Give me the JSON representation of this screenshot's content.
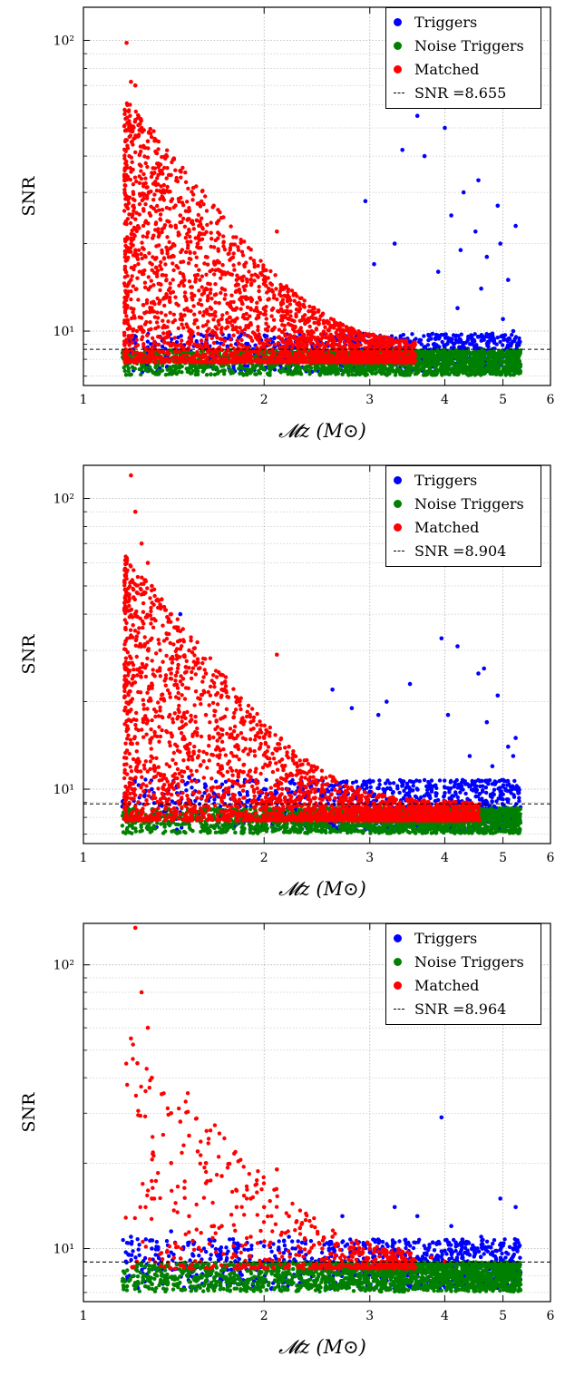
{
  "chart_data": [
    {
      "type": "scatter",
      "xlabel": "𝓜z (M⊙)",
      "ylabel": "SNR",
      "xscale": "log",
      "yscale": "log",
      "xlim": [
        1,
        6
      ],
      "ylim": [
        6.5,
        130
      ],
      "xticks": [
        "1",
        "2",
        "3",
        "4",
        "5",
        "6"
      ],
      "yticks": [
        "10¹",
        "10²"
      ],
      "grid": true,
      "legend_position": "top-right",
      "threshold": 8.655,
      "legend": [
        "Triggers",
        "Noise Triggers",
        "Matched",
        "SNR =8.655"
      ],
      "series": [
        {
          "name": "Triggers",
          "color": "#0000ff",
          "points": [
            [
              4.1,
              25
            ],
            [
              4.3,
              30
            ],
            [
              4.5,
              22
            ],
            [
              4.7,
              18
            ],
            [
              4.9,
              27
            ],
            [
              5.1,
              15
            ],
            [
              4.2,
              12
            ],
            [
              4.6,
              14
            ],
            [
              5.0,
              11
            ],
            [
              3.9,
              16
            ],
            [
              3.6,
              55
            ],
            [
              3.4,
              42
            ],
            [
              3.7,
              40
            ],
            [
              4.0,
              50
            ],
            [
              3.3,
              20
            ],
            [
              2.95,
              28
            ],
            [
              3.05,
              17
            ],
            [
              4.4,
              9.5
            ],
            [
              4.8,
              9.8
            ],
            [
              5.2,
              10
            ],
            [
              3.5,
              9.2
            ],
            [
              4.55,
              33
            ],
            [
              4.95,
              20
            ],
            [
              5.25,
              23
            ],
            [
              4.25,
              19
            ]
          ]
        },
        {
          "name": "Noise Triggers",
          "color": "#008000",
          "points": [
            [
              1.3,
              7.3
            ],
            [
              1.6,
              7.5
            ],
            [
              2.0,
              7.4
            ],
            [
              2.5,
              7.6
            ],
            [
              3.0,
              7.3
            ],
            [
              3.5,
              7.5
            ],
            [
              4.0,
              7.4
            ],
            [
              4.5,
              7.6
            ],
            [
              5.0,
              7.3
            ],
            [
              5.3,
              7.5
            ]
          ]
        },
        {
          "name": "Matched",
          "color": "#ff0000",
          "points": [
            [
              1.18,
              98
            ],
            [
              1.2,
              72
            ],
            [
              1.22,
              70
            ],
            [
              1.25,
              50
            ],
            [
              1.28,
              45
            ],
            [
              1.3,
              35
            ],
            [
              1.35,
              30
            ],
            [
              1.4,
              28
            ],
            [
              1.45,
              25
            ],
            [
              1.5,
              22
            ],
            [
              1.55,
              20
            ],
            [
              1.6,
              18
            ],
            [
              1.7,
              16
            ],
            [
              1.8,
              15
            ],
            [
              1.9,
              13
            ],
            [
              2.0,
              12
            ],
            [
              2.1,
              22
            ],
            [
              2.2,
              11
            ],
            [
              2.4,
              10
            ],
            [
              2.6,
              9.5
            ],
            [
              2.8,
              9
            ],
            [
              3.0,
              8.8
            ],
            [
              3.2,
              8.6
            ],
            [
              1.3,
              12
            ],
            [
              1.5,
              10
            ],
            [
              1.7,
              11
            ],
            [
              1.9,
              9.5
            ],
            [
              2.3,
              9
            ],
            [
              1.2,
              15
            ],
            [
              1.4,
              18
            ],
            [
              1.6,
              14
            ],
            [
              1.8,
              12
            ],
            [
              2.5,
              8.5
            ],
            [
              2.7,
              8.3
            ],
            [
              3.4,
              8.2
            ]
          ]
        }
      ]
    },
    {
      "type": "scatter",
      "xlabel": "𝓜z (M⊙)",
      "ylabel": "SNR",
      "xscale": "log",
      "yscale": "log",
      "xlim": [
        1,
        6
      ],
      "ylim": [
        6.5,
        130
      ],
      "xticks": [
        "1",
        "2",
        "3",
        "4",
        "5",
        "6"
      ],
      "yticks": [
        "10¹",
        "10²"
      ],
      "grid": true,
      "legend_position": "top-right",
      "threshold": 8.904,
      "legend": [
        "Triggers",
        "Noise Triggers",
        "Matched",
        "SNR =8.904"
      ],
      "series": [
        {
          "name": "Triggers",
          "color": "#0000ff",
          "points": [
            [
              1.3,
              10
            ],
            [
              1.5,
              11
            ],
            [
              2.0,
              10
            ],
            [
              2.5,
              9.5
            ],
            [
              3.0,
              9.8
            ],
            [
              3.5,
              10
            ],
            [
              4.0,
              9.7
            ],
            [
              4.5,
              10.2
            ],
            [
              5.0,
              9.6
            ],
            [
              5.3,
              10
            ],
            [
              3.95,
              33
            ],
            [
              4.2,
              31
            ],
            [
              4.55,
              25
            ],
            [
              4.65,
              26
            ],
            [
              3.5,
              23
            ],
            [
              3.2,
              20
            ],
            [
              2.8,
              19
            ],
            [
              4.9,
              21
            ],
            [
              5.25,
              15
            ],
            [
              4.4,
              13
            ],
            [
              4.8,
              12
            ],
            [
              5.1,
              14
            ],
            [
              1.45,
              40
            ],
            [
              2.6,
              22
            ],
            [
              3.1,
              18
            ],
            [
              4.05,
              18
            ],
            [
              4.7,
              17
            ],
            [
              5.2,
              13
            ]
          ]
        },
        {
          "name": "Noise Triggers",
          "color": "#008000",
          "points": [
            [
              1.3,
              7.3
            ],
            [
              1.6,
              7.5
            ],
            [
              2.0,
              7.4
            ],
            [
              2.5,
              7.6
            ],
            [
              3.0,
              7.3
            ],
            [
              3.5,
              7.5
            ],
            [
              4.0,
              7.4
            ],
            [
              4.5,
              7.6
            ],
            [
              5.0,
              7.3
            ],
            [
              5.3,
              7.5
            ]
          ]
        },
        {
          "name": "Matched",
          "color": "#ff0000",
          "points": [
            [
              1.2,
              120
            ],
            [
              1.22,
              90
            ],
            [
              1.25,
              70
            ],
            [
              1.28,
              60
            ],
            [
              1.3,
              50
            ],
            [
              1.35,
              45
            ],
            [
              1.4,
              40
            ],
            [
              1.45,
              35
            ],
            [
              1.5,
              30
            ],
            [
              1.55,
              28
            ],
            [
              1.6,
              25
            ],
            [
              1.7,
              22
            ],
            [
              1.8,
              20
            ],
            [
              1.9,
              17
            ],
            [
              2.0,
              15
            ],
            [
              2.1,
              29
            ],
            [
              2.2,
              14
            ],
            [
              2.4,
              12
            ],
            [
              2.6,
              11
            ],
            [
              2.8,
              10
            ],
            [
              3.0,
              9.5
            ],
            [
              3.3,
              9
            ],
            [
              3.6,
              8.8
            ],
            [
              1.3,
              15
            ],
            [
              1.5,
              13
            ],
            [
              1.7,
              12
            ],
            [
              1.9,
              11
            ],
            [
              2.3,
              10
            ],
            [
              1.2,
              20
            ],
            [
              1.4,
              25
            ],
            [
              1.6,
              18
            ],
            [
              1.8,
              14
            ],
            [
              2.5,
              9.2
            ],
            [
              2.7,
              8.8
            ],
            [
              3.5,
              8.5
            ],
            [
              4.0,
              8.7
            ],
            [
              4.4,
              8.6
            ]
          ]
        }
      ]
    },
    {
      "type": "scatter",
      "xlabel": "𝓜z (M⊙)",
      "ylabel": "SNR",
      "xscale": "log",
      "yscale": "log",
      "xlim": [
        1,
        6
      ],
      "ylim": [
        6.5,
        140
      ],
      "xticks": [
        "1",
        "2",
        "3",
        "4",
        "5",
        "6"
      ],
      "yticks": [
        "10¹",
        "10²"
      ],
      "grid": true,
      "legend_position": "top-right",
      "threshold": 8.964,
      "legend": [
        "Triggers",
        "Noise Triggers",
        "Matched",
        "SNR =8.964"
      ],
      "series": [
        {
          "name": "Triggers",
          "color": "#0000ff",
          "points": [
            [
              1.3,
              10
            ],
            [
              1.5,
              10.5
            ],
            [
              1.8,
              10
            ],
            [
              2.0,
              10.2
            ],
            [
              2.3,
              9.8
            ],
            [
              2.6,
              10
            ],
            [
              3.0,
              9.7
            ],
            [
              3.3,
              9.9
            ],
            [
              3.7,
              9.6
            ],
            [
              4.0,
              9.8
            ],
            [
              4.4,
              9.5
            ],
            [
              4.8,
              9.7
            ],
            [
              5.2,
              9.4
            ],
            [
              3.95,
              29
            ],
            [
              4.95,
              15
            ],
            [
              5.25,
              14
            ],
            [
              4.1,
              12
            ],
            [
              3.6,
              13
            ],
            [
              3.3,
              14
            ],
            [
              2.7,
              13
            ],
            [
              1.2,
              11
            ],
            [
              1.4,
              11.5
            ],
            [
              2.2,
              11
            ],
            [
              4.6,
              11
            ]
          ]
        },
        {
          "name": "Noise Triggers",
          "color": "#008000",
          "points": [
            [
              1.3,
              7.5
            ],
            [
              1.6,
              7.7
            ],
            [
              2.0,
              7.6
            ],
            [
              2.5,
              7.8
            ],
            [
              3.0,
              7.5
            ],
            [
              3.5,
              7.7
            ],
            [
              4.0,
              7.6
            ],
            [
              4.5,
              7.8
            ],
            [
              5.0,
              7.5
            ],
            [
              5.3,
              7.7
            ]
          ]
        },
        {
          "name": "Matched",
          "color": "#ff0000",
          "points": [
            [
              1.22,
              135
            ],
            [
              1.25,
              80
            ],
            [
              1.28,
              60
            ],
            [
              1.2,
              55
            ],
            [
              1.23,
              45
            ],
            [
              1.3,
              40
            ],
            [
              1.35,
              35
            ],
            [
              1.4,
              30
            ],
            [
              1.45,
              28
            ],
            [
              1.5,
              25
            ],
            [
              1.55,
              22
            ],
            [
              1.6,
              20
            ],
            [
              1.7,
              18
            ],
            [
              1.8,
              16
            ],
            [
              1.9,
              15
            ],
            [
              2.0,
              14
            ],
            [
              2.1,
              19
            ],
            [
              2.2,
              13
            ],
            [
              2.4,
              12
            ],
            [
              2.6,
              11
            ],
            [
              2.8,
              10.5
            ],
            [
              3.0,
              10
            ],
            [
              3.2,
              9.8
            ],
            [
              3.5,
              9.5
            ],
            [
              3.8,
              9.3
            ],
            [
              1.3,
              15
            ],
            [
              1.5,
              13
            ],
            [
              1.7,
              12
            ],
            [
              1.9,
              11
            ],
            [
              2.3,
              10
            ],
            [
              1.4,
              20
            ],
            [
              1.6,
              17
            ],
            [
              1.8,
              14
            ],
            [
              2.5,
              10
            ],
            [
              2.7,
              9.5
            ],
            [
              3.4,
              9.2
            ],
            [
              4.0,
              9
            ],
            [
              1.65,
              12
            ],
            [
              2.05,
              10.5
            ],
            [
              2.9,
              9.6
            ]
          ]
        }
      ]
    }
  ]
}
